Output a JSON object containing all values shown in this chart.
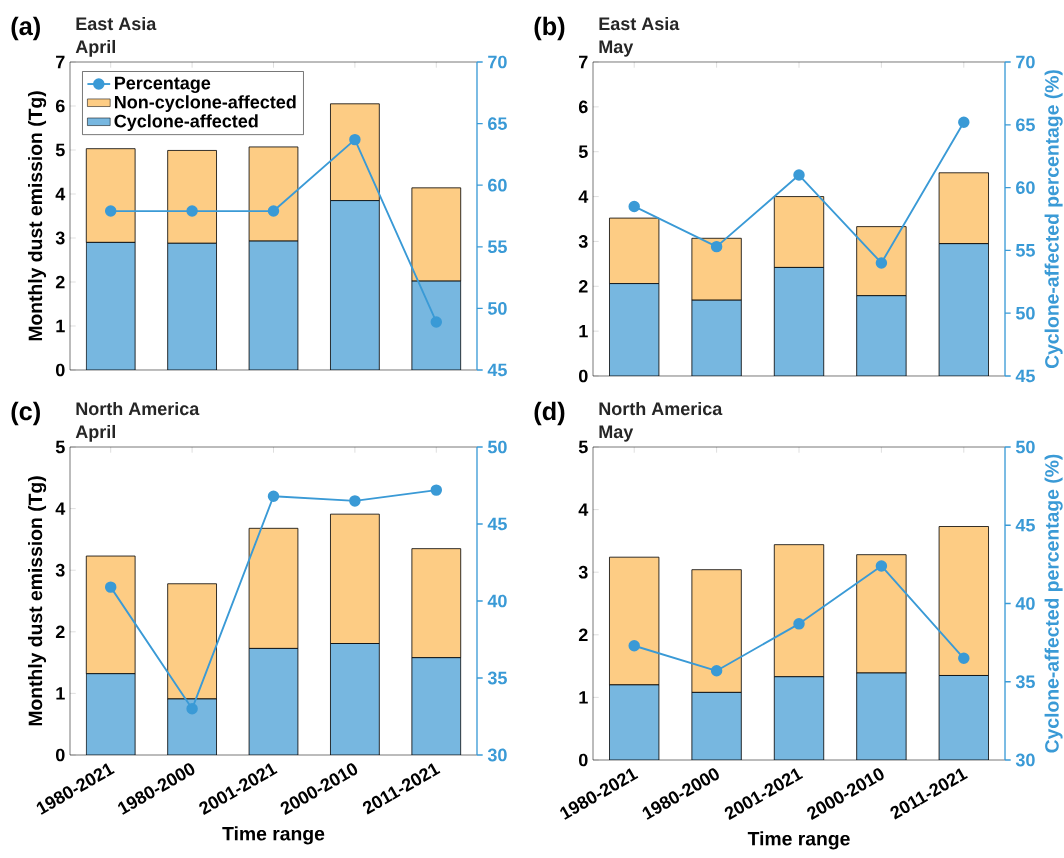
{
  "chart_data": [
    {
      "type": "bar",
      "title": "East Asia",
      "subtitle": "April",
      "annotations": [
        "(a)"
      ],
      "ylabel": "Monthly dust emission (Tg)",
      "categories": [
        null,
        null,
        null,
        null,
        null
      ],
      "stacked": true,
      "marker": "circle",
      "legend": "top left",
      "ylim": [
        0,
        7
      ],
      "yticks": [
        0,
        1,
        2,
        3,
        4,
        5,
        6,
        7
      ],
      "y2lim": [
        45,
        70
      ],
      "y2ticks": [
        45,
        50,
        55,
        60,
        65,
        70
      ],
      "series": [
        {
          "name": "Cyclone-affected",
          "color": "#77b7e0",
          "values": [
            2.9,
            2.88,
            2.93,
            3.85,
            2.02
          ]
        },
        {
          "name": "Non-cyclone-affected",
          "color": "#fdcc84",
          "values": [
            2.13,
            2.11,
            2.14,
            2.2,
            2.12
          ]
        },
        {
          "name": "Percentage",
          "type": "line",
          "axis": "y2",
          "color": "#3a9ad6",
          "values": [
            57.9,
            57.9,
            57.9,
            63.7,
            48.9
          ]
        }
      ]
    },
    {
      "type": "bar",
      "title": "East Asia",
      "subtitle": "May",
      "annotations": [
        "(b)"
      ],
      "y2label": "Cyclone-affected percentage (%)",
      "categories": [
        null,
        null,
        null,
        null,
        null
      ],
      "stacked": true,
      "marker": "circle",
      "ylim": [
        0,
        7
      ],
      "yticks": [
        0,
        1,
        2,
        3,
        4,
        5,
        6,
        7
      ],
      "y2lim": [
        45,
        70
      ],
      "y2ticks": [
        45,
        50,
        55,
        60,
        65,
        70
      ],
      "series": [
        {
          "color": "#77b7e0",
          "values": [
            2.06,
            1.69,
            2.42,
            1.79,
            2.95
          ]
        },
        {
          "color": "#fdcc84",
          "values": [
            1.46,
            1.38,
            1.58,
            1.54,
            1.58
          ]
        },
        {
          "type": "line",
          "axis": "y2",
          "color": "#3a9ad6",
          "values": [
            58.5,
            55.3,
            61.0,
            54.0,
            65.2
          ]
        }
      ]
    },
    {
      "type": "bar",
      "title": "North America",
      "subtitle": "April",
      "annotations": [
        "(c)"
      ],
      "ylabel": "Monthly dust emission (Tg)",
      "xlabel": "Time range",
      "categories": [
        "1980-2021",
        "1980-2000",
        "2001-2021",
        "2000-2010",
        "2011-2021"
      ],
      "stacked": true,
      "marker": "circle",
      "ylim": [
        0,
        5
      ],
      "yticks": [
        0,
        1,
        2,
        3,
        4,
        5
      ],
      "y2lim": [
        30,
        50
      ],
      "y2ticks": [
        30,
        35,
        40,
        45,
        50
      ],
      "series": [
        {
          "color": "#77b7e0",
          "values": [
            1.32,
            0.91,
            1.73,
            1.81,
            1.58
          ]
        },
        {
          "color": "#fdcc84",
          "values": [
            1.91,
            1.87,
            1.95,
            2.1,
            1.77
          ]
        },
        {
          "type": "line",
          "axis": "y2",
          "color": "#3a9ad6",
          "values": [
            40.9,
            33.0,
            46.8,
            46.5,
            47.2
          ]
        }
      ]
    },
    {
      "type": "bar",
      "title": "North America",
      "subtitle": "May",
      "annotations": [
        "(d)"
      ],
      "y2label": "Cyclone-affected percentage (%)",
      "xlabel": "Time range",
      "categories": [
        "1980-2021",
        "1980-2000",
        "2001-2021",
        "2000-2010",
        "2011-2021"
      ],
      "stacked": true,
      "marker": "circle",
      "ylim": [
        0,
        5
      ],
      "yticks": [
        0,
        1,
        2,
        3,
        4,
        5
      ],
      "y2lim": [
        30,
        50
      ],
      "y2ticks": [
        30,
        35,
        40,
        45,
        50
      ],
      "series": [
        {
          "color": "#77b7e0",
          "values": [
            1.2,
            1.08,
            1.33,
            1.39,
            1.35
          ]
        },
        {
          "color": "#fdcc84",
          "values": [
            2.04,
            1.96,
            2.11,
            1.89,
            2.38
          ]
        },
        {
          "type": "line",
          "axis": "y2",
          "color": "#3a9ad6",
          "values": [
            37.3,
            35.7,
            38.7,
            42.4,
            36.5
          ]
        }
      ]
    }
  ]
}
